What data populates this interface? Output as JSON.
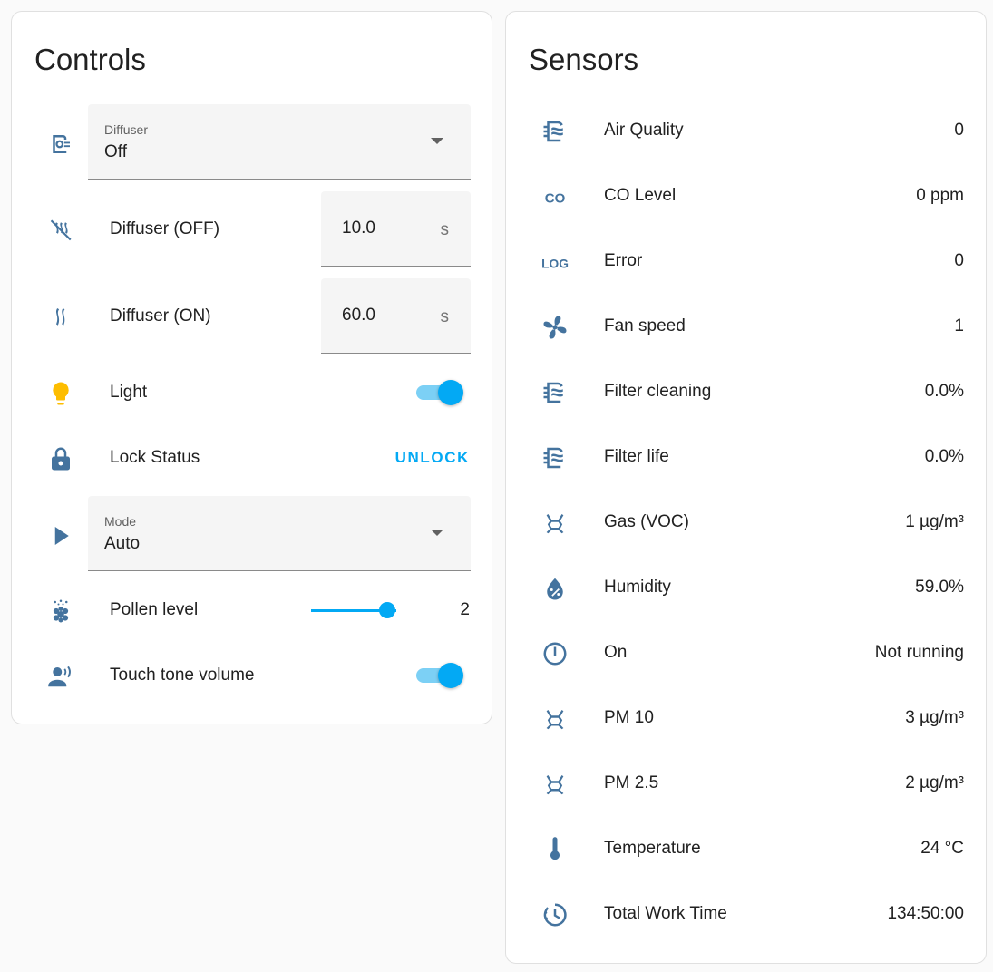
{
  "controls": {
    "title": "Controls",
    "diffuser_select": {
      "label": "Diffuser",
      "value": "Off",
      "icon": "diffuser-icon"
    },
    "diffuser_off": {
      "label": "Diffuser (OFF)",
      "value": "10.0",
      "unit": "s",
      "icon": "scent-off-icon"
    },
    "diffuser_on": {
      "label": "Diffuser (ON)",
      "value": "60.0",
      "unit": "s",
      "icon": "scent-icon"
    },
    "light": {
      "label": "Light",
      "on": true,
      "icon": "lightbulb-icon",
      "icon_color": "#fdbd00"
    },
    "lock": {
      "label": "Lock Status",
      "action": "UNLOCK",
      "icon": "lock-icon"
    },
    "mode_select": {
      "label": "Mode",
      "value": "Auto",
      "icon": "play-icon"
    },
    "pollen": {
      "label": "Pollen level",
      "value": "2",
      "slider_fraction": 0.9,
      "icon": "flower-pollen-icon"
    },
    "touch_tone": {
      "label": "Touch tone volume",
      "on": true,
      "icon": "account-voice-icon"
    }
  },
  "sensors": {
    "title": "Sensors",
    "items": [
      {
        "label": "Air Quality",
        "value": "0",
        "icon": "air-filter-icon"
      },
      {
        "label": "CO Level",
        "value": "0 ppm",
        "icon": "molecule-co-icon"
      },
      {
        "label": "Error",
        "value": "0",
        "icon": "math-log-icon"
      },
      {
        "label": "Fan speed",
        "value": "1",
        "icon": "fan-icon"
      },
      {
        "label": "Filter cleaning",
        "value": "0.0%",
        "icon": "air-filter-icon"
      },
      {
        "label": "Filter life",
        "value": "0.0%",
        "icon": "air-filter-icon"
      },
      {
        "label": "Gas (VOC)",
        "value": "1 µg/m³",
        "icon": "molecule-icon"
      },
      {
        "label": "Humidity",
        "value": "59.0%",
        "icon": "water-percent-icon"
      },
      {
        "label": "On",
        "value": "Not running",
        "icon": "power-icon"
      },
      {
        "label": "PM 10",
        "value": "3 µg/m³",
        "icon": "molecule-icon"
      },
      {
        "label": "PM 2.5",
        "value": "2 µg/m³",
        "icon": "molecule-icon"
      },
      {
        "label": "Temperature",
        "value": "24 °C",
        "icon": "thermometer-icon"
      },
      {
        "label": "Total Work Time",
        "value": "134:50:00",
        "icon": "clock-icon"
      }
    ]
  },
  "colors": {
    "accent": "#03a9f4",
    "icon": "#44739e",
    "light_icon": "#fdbd00"
  }
}
